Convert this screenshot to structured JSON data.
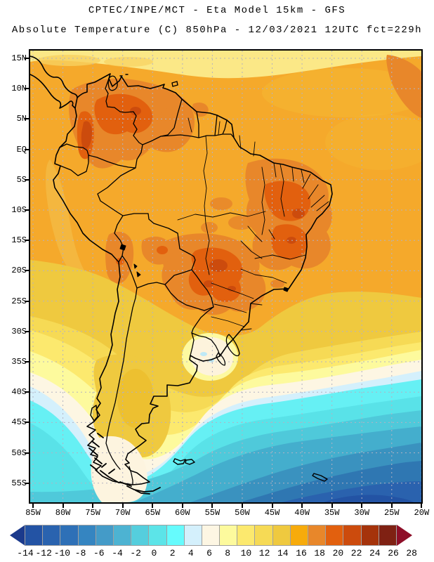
{
  "header": {
    "title_line1": "CPTEC/INPE/MCT -  Eta Model 15km - GFS",
    "title_line2": "Absolute Temperature (C) 850hPa - 12/03/2021 12UTC fct=229h"
  },
  "map": {
    "lat_tick_labels": [
      "15N",
      "10N",
      "5N",
      "EQ",
      "5S",
      "10S",
      "15S",
      "20S",
      "25S",
      "30S",
      "35S",
      "40S",
      "45S",
      "50S",
      "55S"
    ],
    "lon_tick_labels": [
      "85W",
      "80W",
      "75W",
      "70W",
      "65W",
      "60W",
      "55W",
      "50W",
      "45W",
      "40W",
      "35W",
      "30W",
      "25W",
      "20W"
    ],
    "gridline_color": "#b2b2c2",
    "coastline_color": "#000000",
    "frame_color": "#000000"
  },
  "colorbar": {
    "tick_labels": [
      "-14",
      "-12",
      "-10",
      "-8",
      "-6",
      "-4",
      "-2",
      "0",
      "2",
      "4",
      "6",
      "8",
      "10",
      "12",
      "14",
      "16",
      "18",
      "20",
      "22",
      "24",
      "26",
      "28"
    ],
    "cell_colors": [
      "#2353a4",
      "#2a63af",
      "#2e70b7",
      "#3585c1",
      "#449bc8",
      "#4db3d2",
      "#55cedd",
      "#5ce4e8",
      "#66fbfd",
      "#d4f0fc",
      "#fdf6e3",
      "#fdfa9d",
      "#fce96e",
      "#f6da55",
      "#efc93f",
      "#f7ab0b",
      "#e8872a",
      "#e2600e",
      "#cc4b0d",
      "#a5330b",
      "#7f2113"
    ],
    "left_arrow_color": "#1b3a8c",
    "right_arrow_color": "#8e0e28",
    "cell_border_color": "#a0a0a0"
  },
  "chart_data": {
    "type": "heatmap",
    "title": "CPTEC/INPE/MCT -  Eta Model 15km - GFS",
    "subtitle": "Absolute Temperature (C) 850hPa - 12/03/2021 12UTC fct=229h",
    "variable": "Absolute Temperature",
    "units": "C",
    "level": "850hPa",
    "valid": "12/03/2021 12UTC fct=229h",
    "scale_min": -14,
    "scale_max": 28,
    "scale_step": 2,
    "lon_range": [
      "85W",
      "20W"
    ],
    "lat_range": [
      "15N",
      "55S"
    ],
    "grid": "dashed, 5-degree spacing",
    "legend_position": "bottom"
  }
}
